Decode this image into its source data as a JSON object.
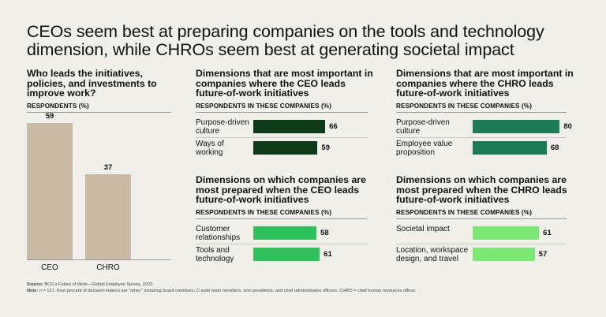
{
  "title": "CEOs seem best at preparing companies on the tools and technology dimension, while CHROs seem best at generating societal impact",
  "colors": {
    "background": "#f0efea",
    "column_bar": "#c9b9a5",
    "ceo_important": "#0f3a1a",
    "chro_important": "#1d7a56",
    "ceo_prepared": "#2fc25c",
    "chro_prepared": "#7ee877"
  },
  "chart_data": [
    {
      "type": "bar",
      "title": "Who leads the initiatives, policies, and investments to improve work?",
      "ylabel": "RESPONDENTS (%)",
      "categories": [
        "CEO",
        "CHRO"
      ],
      "values": [
        59,
        37
      ],
      "ylim": [
        0,
        70
      ]
    },
    {
      "type": "bar",
      "orientation": "horizontal",
      "title": "Dimensions that are most important in companies where the CEO leads future-of-work initiatives",
      "xlabel": "RESPONDENTS IN THESE COMPANIES (%)",
      "categories": [
        "Purpose-driven culture",
        "Ways of working"
      ],
      "values": [
        66,
        59
      ],
      "xlim": [
        0,
        80
      ]
    },
    {
      "type": "bar",
      "orientation": "horizontal",
      "title": "Dimensions that are most important in companies where the CHRO leads future-of-work initiatives",
      "xlabel": "RESPONDENTS IN THESE COMPANIES (%)",
      "categories": [
        "Purpose-driven culture",
        "Employee value proposition"
      ],
      "values": [
        80,
        68
      ],
      "xlim": [
        0,
        80
      ]
    },
    {
      "type": "bar",
      "orientation": "horizontal",
      "title": "Dimensions on which companies are most prepared when the CEO leads future-of-work initiatives",
      "xlabel": "RESPONDENTS IN THESE COMPANIES (%)",
      "categories": [
        "Customer relationships",
        "Tools and technology"
      ],
      "values": [
        58,
        61
      ],
      "xlim": [
        0,
        80
      ]
    },
    {
      "type": "bar",
      "orientation": "horizontal",
      "title": "Dimensions on which companies are most prepared when the CHRO leads future-of-work initiatives",
      "xlabel": "RESPONDENTS IN THESE COMPANIES (%)",
      "categories": [
        "Societal impact",
        "Location, workspace design, and travel"
      ],
      "values": [
        61,
        57
      ],
      "xlim": [
        0,
        80
      ]
    }
  ],
  "footnotes": {
    "source_label": "Source:",
    "source_text": "BCG's Future of Work—Global Employee Survey, 2023.",
    "note_label": "Note:",
    "note_text": "n = 121. Four percent of decision-makers are \"other,\" including board members, C-suite team members, vice presidents, and chief administrative officers. CHRO = chief human resources officer."
  }
}
